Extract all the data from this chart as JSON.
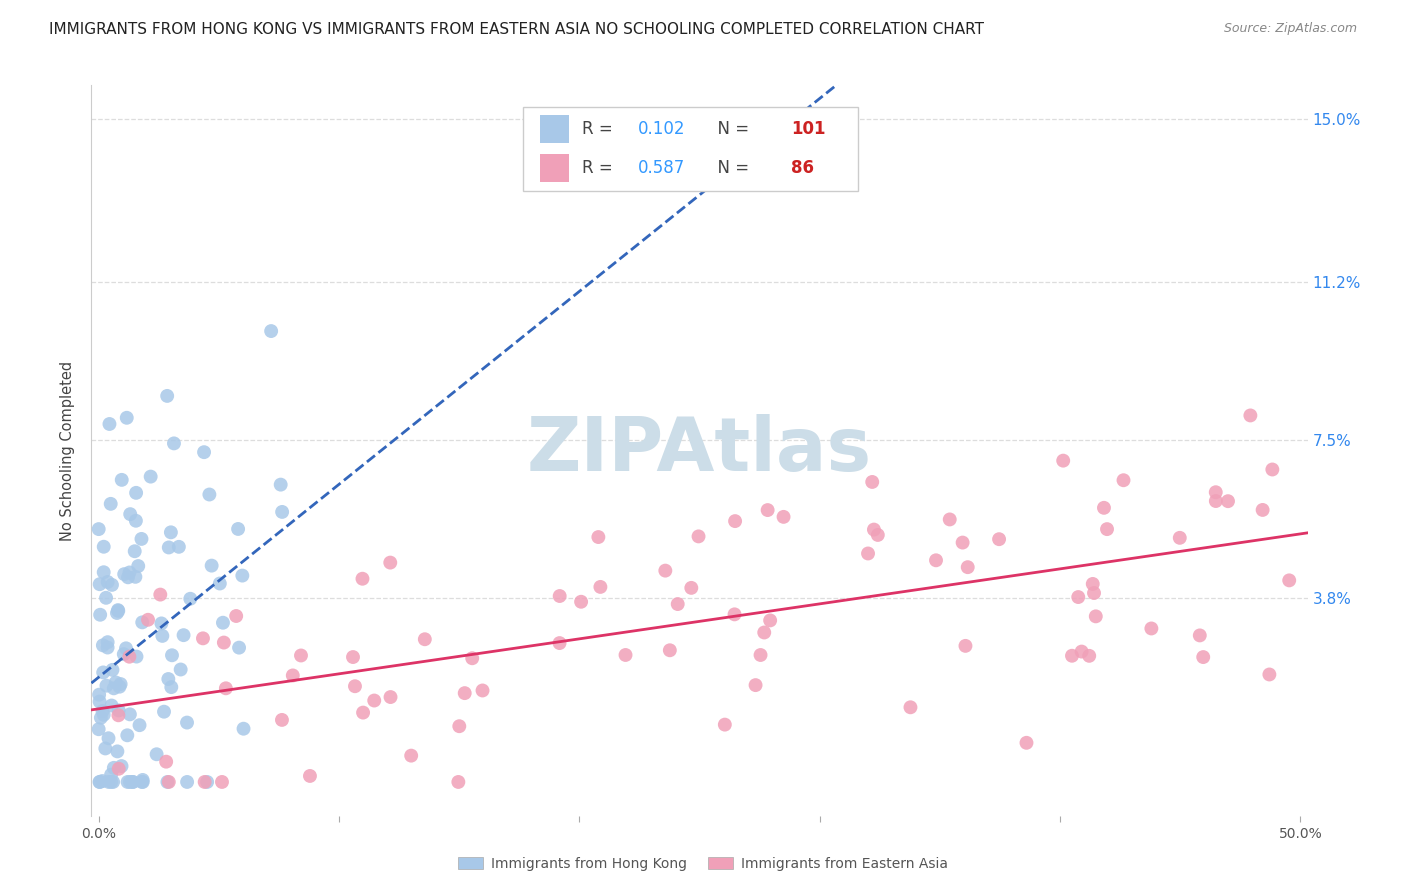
{
  "title": "IMMIGRANTS FROM HONG KONG VS IMMIGRANTS FROM EASTERN ASIA NO SCHOOLING COMPLETED CORRELATION CHART",
  "source": "Source: ZipAtlas.com",
  "ylabel": "No Schooling Completed",
  "xlim": [
    -0.003,
    0.503
  ],
  "ylim": [
    -0.013,
    0.158
  ],
  "xtick_values": [
    0.0,
    0.1,
    0.2,
    0.3,
    0.4,
    0.5
  ],
  "xtick_labels_show": [
    "0.0%",
    "",
    "",
    "",
    "",
    "50.0%"
  ],
  "ytick_values": [
    0.038,
    0.075,
    0.112,
    0.15
  ],
  "ytick_labels": [
    "3.8%",
    "7.5%",
    "11.2%",
    "15.0%"
  ],
  "hk_color": "#a8c8e8",
  "ea_color": "#f0a0b8",
  "hk_line_color": "#3366bb",
  "ea_line_color": "#dd3366",
  "legend_r_color": "#3399ff",
  "legend_n_color": "#cc2222",
  "hk_r": 0.102,
  "hk_n": 101,
  "ea_r": 0.587,
  "ea_n": 86,
  "watermark": "ZIPAtlas",
  "watermark_color": "#ccdde8",
  "background_color": "#ffffff",
  "grid_color": "#dddddd",
  "title_fontsize": 11.0,
  "tick_fontsize": 10,
  "legend_fontsize": 12
}
